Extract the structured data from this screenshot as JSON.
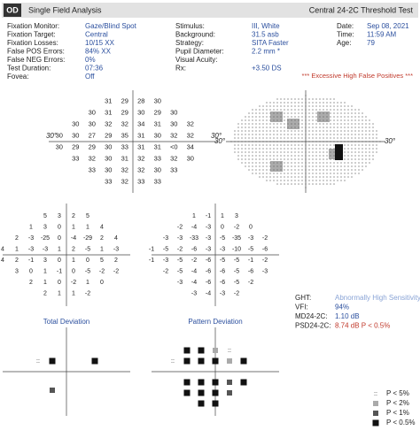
{
  "header": {
    "eye": "OD",
    "title": "Single Field Analysis",
    "test": "Central 24-2C Threshold Test"
  },
  "info_left": [
    [
      "Fixation Monitor:",
      "Gaze/Blind Spot"
    ],
    [
      "Fixation Target:",
      "Central"
    ],
    [
      "Fixation Losses:",
      "10/15 XX"
    ],
    [
      "False POS Errors:",
      "84% XX"
    ],
    [
      "False NEG Errors:",
      "0%"
    ],
    [
      "Test Duration:",
      "07:36"
    ],
    [
      "Fovea:",
      "Off"
    ]
  ],
  "info_mid": [
    [
      "Stimulus:",
      "III, White"
    ],
    [
      "Background:",
      "31.5 asb"
    ],
    [
      "Strategy:",
      "SITA Faster"
    ],
    [
      "Pupil Diameter:",
      "2.2 mm *"
    ],
    [
      "Visual Acuity:"
    ],
    [
      "Rx:",
      "+3.50 DS"
    ]
  ],
  "info_right": [
    [
      "Date:",
      "Sep 08, 2021"
    ],
    [
      "Time:",
      "11:59 AM"
    ],
    [
      "Age:",
      "79"
    ]
  ],
  "warning": "*** Excessive High False Positives ***",
  "degree_labels": [
    "30°",
    "30°",
    "30°",
    "30°"
  ],
  "threshold": {
    "rows": [
      [
        31,
        29,
        28,
        30
      ],
      [
        30,
        31,
        29,
        30,
        29,
        30
      ],
      [
        30,
        30,
        32,
        32,
        34,
        31,
        30,
        32
      ],
      [
        30,
        30,
        27,
        29,
        35,
        31,
        30,
        32,
        32
      ],
      [
        30,
        29,
        29,
        30,
        33,
        31,
        31,
        "<0",
        34
      ],
      [
        33,
        32,
        30,
        31,
        32,
        33,
        32,
        30
      ],
      [
        33,
        30,
        32,
        32,
        30,
        33
      ],
      [
        33,
        32,
        33,
        33
      ]
    ]
  },
  "total_deviation": {
    "title": "Total Deviation",
    "rows": [
      [
        5,
        3,
        2,
        5
      ],
      [
        1,
        3,
        0,
        1,
        1,
        4
      ],
      [
        2,
        -3,
        -25,
        0,
        -4,
        -29,
        2,
        4
      ],
      [
        4,
        1,
        -3,
        -3,
        1,
        2,
        -5,
        1,
        -3
      ],
      [
        4,
        2,
        -1,
        3,
        0,
        1,
        0,
        5,
        2
      ],
      [
        3,
        0,
        1,
        -1,
        0,
        -5,
        -2,
        -2
      ],
      [
        2,
        1,
        0,
        -2,
        1,
        0
      ],
      [
        2,
        1,
        1,
        -2
      ]
    ]
  },
  "pattern_deviation": {
    "title": "Pattern Deviation",
    "rows": [
      [
        1,
        -1,
        1,
        3
      ],
      [
        -2,
        -4,
        -3,
        0,
        -2,
        0
      ],
      [
        -3,
        -3,
        -33,
        -3,
        -5,
        -35,
        -3,
        -2
      ],
      [
        -1,
        -5,
        -2,
        -6,
        -3,
        -3,
        -10,
        -5,
        -6
      ],
      [
        -1,
        -3,
        -5,
        -2,
        -6,
        -5,
        -5,
        -1,
        -2
      ],
      [
        -2,
        -5,
        -4,
        -6,
        -6,
        -5,
        -6,
        -3
      ],
      [
        -3,
        -4,
        -6,
        -6,
        -5,
        -2
      ],
      [
        -3,
        -4,
        -3,
        -2
      ]
    ]
  },
  "indices": [
    [
      "GHT:",
      "Abnormally High Sensitivity"
    ],
    [
      "VFI:",
      "94%"
    ],
    [
      "MD24-2C:",
      "1.10 dB"
    ],
    [
      "PSD24-2C:",
      "8.74 dB P < 0.5%"
    ]
  ],
  "legend": [
    "P < 5%",
    "P < 2%",
    "P < 1%",
    "P < 0.5%"
  ]
}
